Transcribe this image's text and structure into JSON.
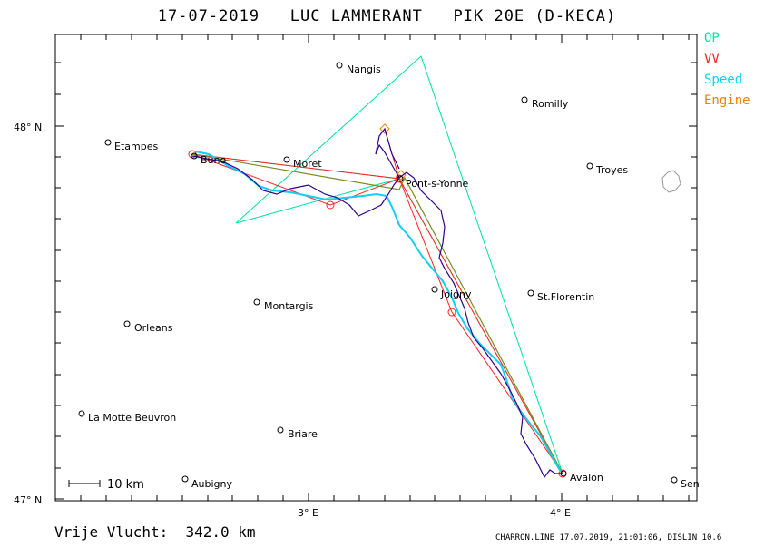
{
  "title": "17-07-2019   LUC LAMMERANT   PIK 20E (D-KECA)",
  "legend": [
    {
      "label": "OP",
      "color": "#00e0a0"
    },
    {
      "label": "VV",
      "color": "#ff2020"
    },
    {
      "label": "Speed",
      "color": "#10d0f0"
    },
    {
      "label": "Engine",
      "color": "#f08000"
    }
  ],
  "axes": {
    "lat_ticks": [
      "48° N",
      "47° N"
    ],
    "lon_ticks": [
      "3° E",
      "4° E"
    ]
  },
  "scale_label": "10 km",
  "footer_left": "Vrije Vlucht:  342.0 km",
  "footer_right": "CHARRON.LINE 17.07.2019, 21:01:06, DISLIN 10.6",
  "places": [
    {
      "name": "Nangis"
    },
    {
      "name": "Romilly"
    },
    {
      "name": "Etampes"
    },
    {
      "name": "Troyes"
    },
    {
      "name": "Buno"
    },
    {
      "name": "Moret"
    },
    {
      "name": "Pont-s-Yonne"
    },
    {
      "name": "Joigny"
    },
    {
      "name": "St.Florentin"
    },
    {
      "name": "Montargis"
    },
    {
      "name": "Orleans"
    },
    {
      "name": "La Motte Beuvron"
    },
    {
      "name": "Briare"
    },
    {
      "name": "Aubigny"
    },
    {
      "name": "Avalon"
    },
    {
      "name": "Sen"
    }
  ]
}
